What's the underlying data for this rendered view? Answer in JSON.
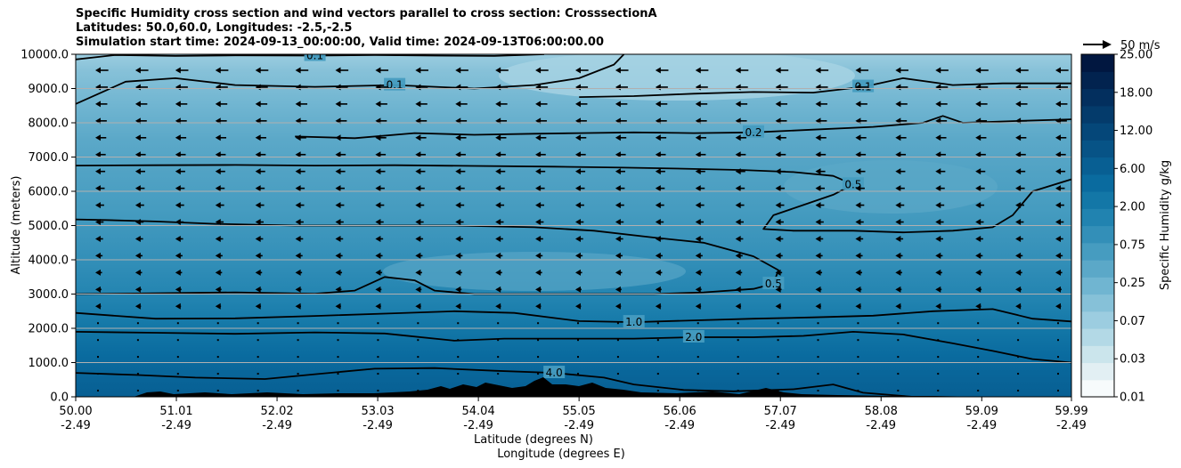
{
  "chart_data": {
    "type": "heatmap",
    "title_lines": [
      "Specific Humidity cross section and wind vectors parallel to cross section: CrosssectionA",
      "Latitudes: 50.0,60.0, Longitudes: -2.5,-2.5",
      "Simulation start time: 2024-09-13_00:00:00, Valid time: 2024-09-13T06:00:00.00"
    ],
    "xlabel": "Latitude (degrees N)",
    "xlabel2": "Longitude (degrees E)",
    "ylabel": "Altitude (meters)",
    "x_ticks": [
      {
        "lat": "50.00",
        "lon": "-2.49",
        "value": 50.0
      },
      {
        "lat": "51.01",
        "lon": "-2.49",
        "value": 51.01
      },
      {
        "lat": "52.02",
        "lon": "-2.49",
        "value": 52.02
      },
      {
        "lat": "53.03",
        "lon": "-2.49",
        "value": 53.03
      },
      {
        "lat": "54.04",
        "lon": "-2.49",
        "value": 54.04
      },
      {
        "lat": "55.05",
        "lon": "-2.49",
        "value": 55.05
      },
      {
        "lat": "56.06",
        "lon": "-2.49",
        "value": 56.06
      },
      {
        "lat": "57.07",
        "lon": "-2.49",
        "value": 57.07
      },
      {
        "lat": "58.08",
        "lon": "-2.49",
        "value": 58.08
      },
      {
        "lat": "59.09",
        "lon": "-2.49",
        "value": 59.09
      },
      {
        "lat": "59.99",
        "lon": "-2.49",
        "value": 59.99
      }
    ],
    "xlim": [
      50.0,
      59.99
    ],
    "y_ticks": [
      "0.0",
      "1000.0",
      "2000.0",
      "3000.0",
      "4000.0",
      "5000.0",
      "6000.0",
      "7000.0",
      "8000.0",
      "9000.0",
      "10000.0"
    ],
    "ylim": [
      0,
      10000
    ],
    "grid": "horizontal",
    "colorbar": {
      "label": "Specific Humidity g/kg",
      "tick_labels": [
        "0.01",
        "0.03",
        "0.07",
        "0.25",
        "0.75",
        "2.00",
        "6.00",
        "12.00",
        "18.00",
        "25.00"
      ],
      "colors": [
        "#f7fbfc",
        "#e2eff3",
        "#cbe5ec",
        "#b3d9e6",
        "#9ccde0",
        "#86c1d8",
        "#70b5d1",
        "#5ba8c8",
        "#469cc0",
        "#338fb8",
        "#2183b0",
        "#1377a7",
        "#0a6b9f",
        "#085f93",
        "#075386",
        "#054779",
        "#043b6b",
        "#032f5e",
        "#02234f",
        "#011740"
      ]
    },
    "wind_reference": "50 m/s",
    "contour_levels": [
      "0.1",
      "0.2",
      "0.5",
      "1.0",
      "2.0",
      "4.0"
    ],
    "contours": [
      {
        "level": "4.0",
        "points": [
          [
            50.0,
            700
          ],
          [
            50.6,
            640
          ],
          [
            51.2,
            560
          ],
          [
            51.9,
            520
          ],
          [
            52.4,
            660
          ],
          [
            53.0,
            820
          ],
          [
            53.6,
            840
          ],
          [
            54.2,
            760
          ],
          [
            54.8,
            700
          ],
          [
            55.3,
            560
          ],
          [
            55.6,
            360
          ],
          [
            56.1,
            200
          ],
          [
            56.6,
            160
          ],
          [
            57.2,
            220
          ],
          [
            57.6,
            360
          ],
          [
            57.9,
            120
          ],
          [
            58.4,
            0
          ]
        ]
      },
      {
        "level": "2.0",
        "points": [
          [
            50.0,
            1900
          ],
          [
            50.8,
            1870
          ],
          [
            51.6,
            1840
          ],
          [
            52.4,
            1880
          ],
          [
            53.1,
            1850
          ],
          [
            53.8,
            1640
          ],
          [
            54.3,
            1700
          ],
          [
            55.05,
            1700
          ],
          [
            55.6,
            1700
          ],
          [
            56.2,
            1740
          ],
          [
            56.8,
            1740
          ],
          [
            57.3,
            1780
          ],
          [
            57.8,
            1900
          ],
          [
            58.3,
            1820
          ],
          [
            58.8,
            1560
          ],
          [
            59.2,
            1340
          ],
          [
            59.6,
            1100
          ],
          [
            59.99,
            1000
          ]
        ]
      },
      {
        "level": "1.0",
        "points": [
          [
            50.0,
            2450
          ],
          [
            50.8,
            2280
          ],
          [
            51.6,
            2290
          ],
          [
            52.4,
            2360
          ],
          [
            53.2,
            2440
          ],
          [
            53.8,
            2500
          ],
          [
            54.4,
            2450
          ],
          [
            55.05,
            2210
          ],
          [
            55.6,
            2180
          ],
          [
            56.2,
            2230
          ],
          [
            56.8,
            2280
          ],
          [
            57.4,
            2320
          ],
          [
            58.0,
            2370
          ],
          [
            58.6,
            2500
          ],
          [
            59.2,
            2560
          ],
          [
            59.6,
            2280
          ],
          [
            59.99,
            2200
          ]
        ]
      },
      {
        "level": "0.5",
        "points": [
          [
            50.0,
            3000
          ],
          [
            50.8,
            3020
          ],
          [
            51.6,
            3050
          ],
          [
            52.4,
            3010
          ],
          [
            52.8,
            3100
          ],
          [
            53.1,
            3500
          ],
          [
            53.4,
            3400
          ],
          [
            53.6,
            3100
          ],
          [
            54.0,
            3000
          ],
          [
            54.6,
            3000
          ],
          [
            55.2,
            3000
          ],
          [
            55.8,
            3000
          ],
          [
            56.3,
            3050
          ],
          [
            56.8,
            3150
          ],
          [
            57.0,
            3300
          ],
          [
            57.05,
            3700
          ],
          [
            56.8,
            4100
          ],
          [
            56.3,
            4500
          ],
          [
            55.8,
            4650
          ],
          [
            55.2,
            4850
          ],
          [
            54.6,
            4950
          ],
          [
            53.8,
            5000
          ],
          [
            53.0,
            5000
          ],
          [
            52.2,
            5000
          ],
          [
            51.4,
            5050
          ],
          [
            50.8,
            5120
          ],
          [
            50.3,
            5160
          ],
          [
            50.0,
            5180
          ]
        ]
      },
      {
        "level": "0.5",
        "points": [
          [
            50.0,
            6750
          ],
          [
            50.8,
            6760
          ],
          [
            51.6,
            6770
          ],
          [
            52.4,
            6750
          ],
          [
            53.2,
            6760
          ],
          [
            54.0,
            6740
          ],
          [
            54.8,
            6720
          ],
          [
            55.5,
            6690
          ],
          [
            56.1,
            6660
          ],
          [
            56.7,
            6620
          ],
          [
            57.2,
            6560
          ],
          [
            57.6,
            6450
          ],
          [
            57.8,
            6200
          ],
          [
            57.6,
            5900
          ],
          [
            57.3,
            5600
          ],
          [
            57.0,
            5300
          ],
          [
            56.9,
            4900
          ],
          [
            57.2,
            4850
          ],
          [
            57.8,
            4850
          ],
          [
            58.3,
            4800
          ],
          [
            58.8,
            4850
          ],
          [
            59.2,
            4950
          ],
          [
            59.4,
            5300
          ],
          [
            59.6,
            6000
          ],
          [
            59.99,
            6350
          ]
        ]
      },
      {
        "level": "0.2",
        "points": [
          [
            52.2,
            7600
          ],
          [
            52.8,
            7550
          ],
          [
            53.4,
            7700
          ],
          [
            54.0,
            7650
          ],
          [
            54.6,
            7680
          ],
          [
            55.05,
            7700
          ],
          [
            55.6,
            7720
          ],
          [
            56.2,
            7700
          ],
          [
            56.8,
            7720
          ],
          [
            57.4,
            7800
          ],
          [
            58.0,
            7880
          ],
          [
            58.5,
            8000
          ],
          [
            58.7,
            8200
          ],
          [
            58.9,
            8000
          ],
          [
            59.4,
            8050
          ],
          [
            59.99,
            8100
          ]
        ]
      },
      {
        "level": "0.1",
        "points": [
          [
            50.0,
            8550
          ],
          [
            50.5,
            9200
          ],
          [
            51.0,
            9300
          ],
          [
            51.6,
            9100
          ],
          [
            52.4,
            9050
          ],
          [
            53.2,
            9100
          ],
          [
            54.0,
            9000
          ],
          [
            54.6,
            9100
          ],
          [
            55.05,
            9300
          ],
          [
            55.4,
            9700
          ],
          [
            55.5,
            10000
          ]
        ]
      },
      {
        "level": "0.1",
        "points": [
          [
            55.05,
            8750
          ],
          [
            55.6,
            8780
          ],
          [
            56.2,
            8850
          ],
          [
            56.8,
            8900
          ],
          [
            57.4,
            8880
          ],
          [
            57.9,
            9050
          ],
          [
            58.3,
            9300
          ],
          [
            58.8,
            9100
          ],
          [
            59.3,
            9150
          ],
          [
            59.99,
            9150
          ]
        ]
      },
      {
        "level": "0.1",
        "points": [
          [
            50.0,
            9850
          ],
          [
            50.4,
            9980
          ],
          [
            51.0,
            9950
          ],
          [
            51.6,
            9970
          ],
          [
            52.4,
            9960
          ],
          [
            53.0,
            9980
          ],
          [
            53.6,
            9960
          ],
          [
            54.2,
            9950
          ],
          [
            54.7,
            10000
          ]
        ]
      }
    ]
  }
}
